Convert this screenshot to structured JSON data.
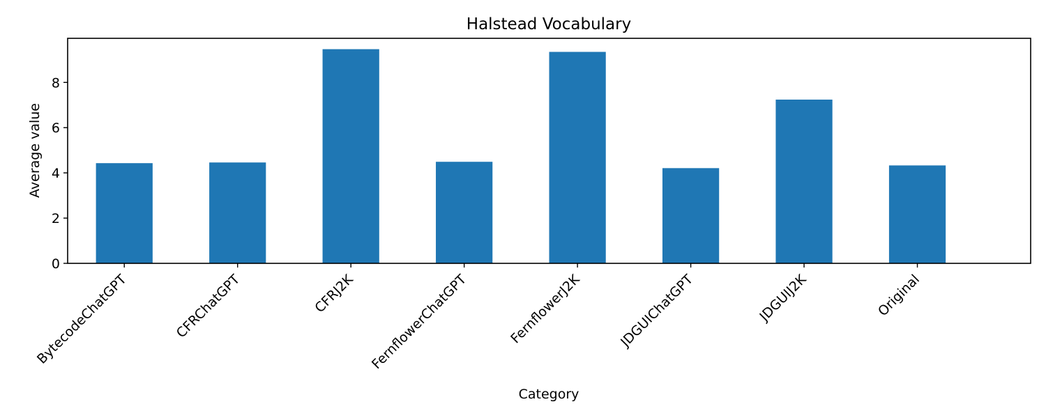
{
  "chart_data": {
    "type": "bar",
    "title": "Halstead Vocabulary",
    "xlabel": "Category",
    "ylabel": "Average value",
    "categories": [
      "BytecodeChatGPT",
      "CFRChatGPT",
      "CFRJ2K",
      "FernflowerChatGPT",
      "FernflowerJ2K",
      "JDGUIChatGPT",
      "JDGUIJ2K",
      "Original"
    ],
    "values": [
      4.43,
      4.46,
      9.47,
      4.49,
      9.35,
      4.21,
      7.24,
      4.33
    ],
    "ylim": [
      0,
      9.95
    ],
    "yticks": [
      0,
      2,
      4,
      6,
      8
    ],
    "bar_color": "#1f77b4",
    "grid": false,
    "legend": "none"
  }
}
